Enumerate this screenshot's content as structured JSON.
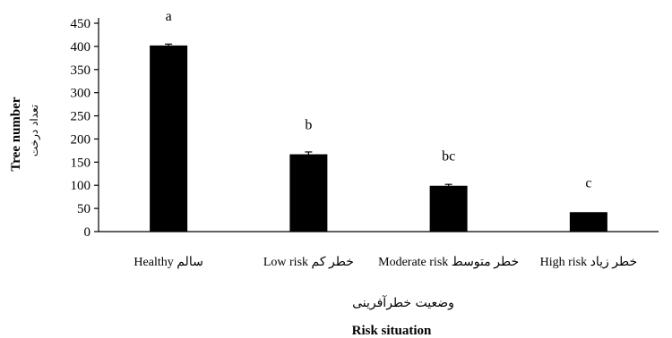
{
  "chart_data": {
    "type": "bar",
    "categories": [
      "Healthy سالم",
      "Low risk خطر کم",
      "Moderate risk خطر متوسط",
      "High risk خطر زیاد"
    ],
    "values": [
      402,
      167,
      99,
      42
    ],
    "errors": [
      3,
      5,
      3,
      0
    ],
    "significance_letters": [
      "a",
      "b",
      "bc",
      "c"
    ],
    "title": "",
    "xlabel": "Risk situation",
    "xlabel_fa": "وضعیت خطرآفرینی",
    "ylabel": "Tree number",
    "ylabel_fa": "تعداد درخت",
    "ylim": [
      0,
      450
    ],
    "yticks": [
      0,
      50,
      100,
      150,
      200,
      250,
      300,
      350,
      400,
      450
    ],
    "grid": false,
    "legend": "none",
    "bar_color": "#000000"
  }
}
